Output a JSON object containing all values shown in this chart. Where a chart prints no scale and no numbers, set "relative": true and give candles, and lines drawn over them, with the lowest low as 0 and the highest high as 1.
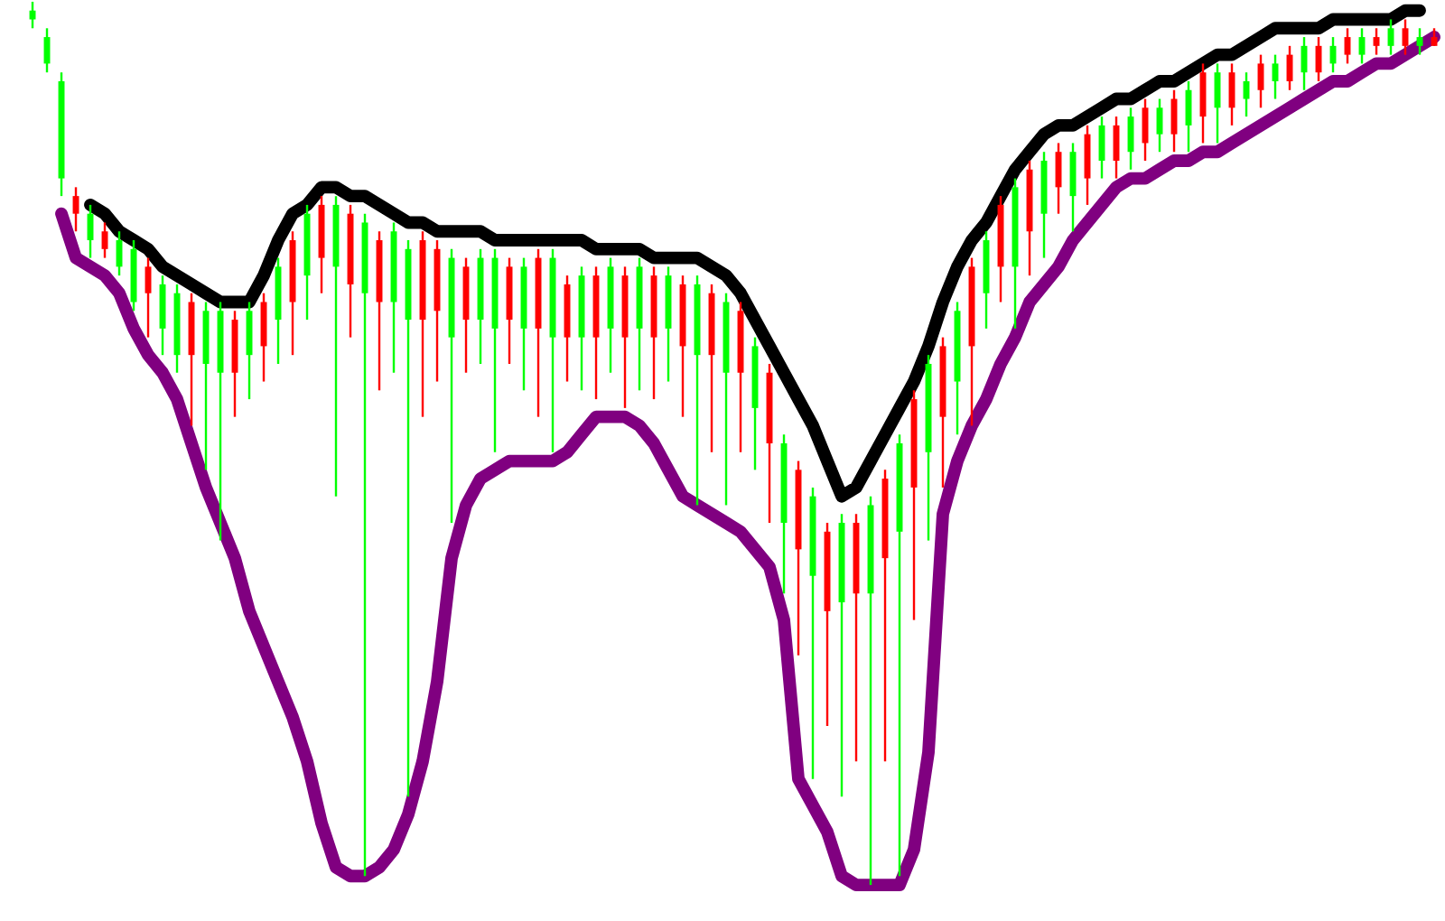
{
  "chart_data": {
    "type": "candlestick",
    "relative": true,
    "categories": [
      null,
      null,
      null,
      null,
      null,
      null,
      null,
      null,
      null,
      null,
      null,
      null,
      null,
      null,
      null,
      null,
      null,
      null,
      null,
      null,
      null,
      null,
      null,
      null,
      null,
      null,
      null,
      null,
      null,
      null,
      null,
      null,
      null,
      null,
      null,
      null,
      null,
      null,
      null,
      null,
      null,
      null,
      null,
      null,
      null,
      null,
      null,
      null,
      null,
      null,
      null,
      null,
      null,
      null,
      null,
      null,
      null,
      null,
      null,
      null,
      null,
      null,
      null,
      null,
      null,
      null,
      null,
      null,
      null,
      null,
      null,
      null,
      null,
      null,
      null,
      null,
      null,
      null,
      null,
      null,
      null,
      null,
      null,
      null,
      null,
      null,
      null,
      null,
      null,
      null,
      null,
      null,
      null,
      null,
      null,
      null,
      null,
      null
    ],
    "ohlc": [
      [
        0.99,
        1.0,
        0.97,
        0.98
      ],
      [
        0.96,
        0.97,
        0.92,
        0.93
      ],
      [
        0.91,
        0.92,
        0.78,
        0.8
      ],
      [
        0.76,
        0.79,
        0.74,
        0.78
      ],
      [
        0.76,
        0.77,
        0.71,
        0.73
      ],
      [
        0.72,
        0.75,
        0.71,
        0.74
      ],
      [
        0.73,
        0.74,
        0.69,
        0.7
      ],
      [
        0.72,
        0.73,
        0.65,
        0.66
      ],
      [
        0.67,
        0.71,
        0.62,
        0.7
      ],
      [
        0.68,
        0.69,
        0.6,
        0.63
      ],
      [
        0.67,
        0.68,
        0.58,
        0.6
      ],
      [
        0.6,
        0.67,
        0.52,
        0.66
      ],
      [
        0.65,
        0.66,
        0.47,
        0.59
      ],
      [
        0.65,
        0.66,
        0.39,
        0.58
      ],
      [
        0.58,
        0.65,
        0.53,
        0.64
      ],
      [
        0.65,
        0.66,
        0.55,
        0.6
      ],
      [
        0.61,
        0.67,
        0.57,
        0.66
      ],
      [
        0.7,
        0.71,
        0.59,
        0.64
      ],
      [
        0.66,
        0.74,
        0.6,
        0.73
      ],
      [
        0.76,
        0.77,
        0.64,
        0.69
      ],
      [
        0.71,
        0.78,
        0.67,
        0.77
      ],
      [
        0.77,
        0.78,
        0.44,
        0.7
      ],
      [
        0.68,
        0.77,
        0.62,
        0.76
      ],
      [
        0.75,
        0.76,
        0.01,
        0.67
      ],
      [
        0.66,
        0.74,
        0.56,
        0.73
      ],
      [
        0.74,
        0.75,
        0.58,
        0.66
      ],
      [
        0.72,
        0.73,
        0.1,
        0.64
      ],
      [
        0.64,
        0.74,
        0.53,
        0.73
      ],
      [
        0.65,
        0.73,
        0.57,
        0.72
      ],
      [
        0.71,
        0.72,
        0.41,
        0.62
      ],
      [
        0.64,
        0.71,
        0.58,
        0.7
      ],
      [
        0.71,
        0.72,
        0.59,
        0.64
      ],
      [
        0.71,
        0.72,
        0.49,
        0.63
      ],
      [
        0.64,
        0.71,
        0.59,
        0.7
      ],
      [
        0.7,
        0.71,
        0.56,
        0.63
      ],
      [
        0.63,
        0.72,
        0.53,
        0.71
      ],
      [
        0.71,
        0.72,
        0.49,
        0.62
      ],
      [
        0.62,
        0.69,
        0.57,
        0.68
      ],
      [
        0.69,
        0.7,
        0.56,
        0.62
      ],
      [
        0.62,
        0.7,
        0.55,
        0.69
      ],
      [
        0.7,
        0.71,
        0.58,
        0.63
      ],
      [
        0.62,
        0.7,
        0.54,
        0.69
      ],
      [
        0.7,
        0.71,
        0.56,
        0.63
      ],
      [
        0.62,
        0.7,
        0.55,
        0.69
      ],
      [
        0.69,
        0.7,
        0.57,
        0.63
      ],
      [
        0.61,
        0.69,
        0.53,
        0.68
      ],
      [
        0.68,
        0.69,
        0.43,
        0.6
      ],
      [
        0.6,
        0.68,
        0.49,
        0.67
      ],
      [
        0.66,
        0.67,
        0.43,
        0.58
      ],
      [
        0.58,
        0.66,
        0.49,
        0.65
      ],
      [
        0.61,
        0.62,
        0.47,
        0.54
      ],
      [
        0.5,
        0.59,
        0.41,
        0.58
      ],
      [
        0.5,
        0.51,
        0.33,
        0.41
      ],
      [
        0.38,
        0.48,
        0.26,
        0.47
      ],
      [
        0.44,
        0.45,
        0.12,
        0.35
      ],
      [
        0.31,
        0.41,
        0.18,
        0.4
      ],
      [
        0.41,
        0.42,
        0.1,
        0.32
      ],
      [
        0.33,
        0.42,
        0.14,
        0.41
      ],
      [
        0.43,
        0.44,
        0.0,
        0.33
      ],
      [
        0.37,
        0.47,
        0.14,
        0.46
      ],
      [
        0.5,
        0.51,
        0.01,
        0.4
      ],
      [
        0.45,
        0.56,
        0.3,
        0.55
      ],
      [
        0.59,
        0.6,
        0.39,
        0.49
      ],
      [
        0.53,
        0.62,
        0.45,
        0.61
      ],
      [
        0.65,
        0.66,
        0.51,
        0.57
      ],
      [
        0.61,
        0.71,
        0.52,
        0.7
      ],
      [
        0.73,
        0.74,
        0.63,
        0.67
      ],
      [
        0.7,
        0.78,
        0.66,
        0.77
      ],
      [
        0.79,
        0.8,
        0.63,
        0.7
      ],
      [
        0.74,
        0.82,
        0.69,
        0.81
      ],
      [
        0.82,
        0.83,
        0.71,
        0.76
      ],
      [
        0.79,
        0.84,
        0.76,
        0.83
      ],
      [
        0.83,
        0.84,
        0.74,
        0.78
      ],
      [
        0.8,
        0.86,
        0.77,
        0.85
      ],
      [
        0.86,
        0.87,
        0.8,
        0.82
      ],
      [
        0.82,
        0.87,
        0.8,
        0.86
      ],
      [
        0.87,
        0.88,
        0.81,
        0.83
      ],
      [
        0.84,
        0.89,
        0.82,
        0.88
      ],
      [
        0.88,
        0.89,
        0.83,
        0.85
      ],
      [
        0.85,
        0.9,
        0.83,
        0.89
      ],
      [
        0.9,
        0.91,
        0.83,
        0.86
      ],
      [
        0.87,
        0.93,
        0.84,
        0.92
      ],
      [
        0.92,
        0.93,
        0.84,
        0.88
      ],
      [
        0.88,
        0.93,
        0.86,
        0.92
      ],
      [
        0.91,
        0.92,
        0.87,
        0.89
      ],
      [
        0.9,
        0.94,
        0.88,
        0.93
      ],
      [
        0.93,
        0.94,
        0.89,
        0.91
      ],
      [
        0.91,
        0.95,
        0.9,
        0.94
      ],
      [
        0.95,
        0.96,
        0.9,
        0.92
      ],
      [
        0.92,
        0.96,
        0.91,
        0.95
      ],
      [
        0.95,
        0.96,
        0.92,
        0.93
      ],
      [
        0.94,
        0.97,
        0.93,
        0.96
      ],
      [
        0.96,
        0.97,
        0.93,
        0.94
      ],
      [
        0.95,
        0.97,
        0.94,
        0.96
      ],
      [
        0.97,
        0.98,
        0.94,
        0.95
      ],
      [
        0.95,
        0.98,
        0.94,
        0.97
      ],
      [
        0.96,
        0.97,
        0.94,
        0.95
      ],
      [
        0.95,
        0.97,
        0.95,
        0.96
      ]
    ],
    "colors": [
      "#00ff00",
      "#00ff00",
      "#00ff00",
      "#ff0000",
      "#00ff00",
      "#ff0000",
      "#00ff00",
      "#00ff00",
      "#ff0000",
      "#00ff00",
      "#00ff00",
      "#ff0000",
      "#00ff00",
      "#00ff00",
      "#ff0000",
      "#00ff00",
      "#ff0000",
      "#00ff00",
      "#ff0000",
      "#00ff00",
      "#ff0000",
      "#00ff00",
      "#ff0000",
      "#00ff00",
      "#ff0000",
      "#00ff00",
      "#00ff00",
      "#ff0000",
      "#ff0000",
      "#00ff00",
      "#ff0000",
      "#00ff00",
      "#00ff00",
      "#ff0000",
      "#00ff00",
      "#ff0000",
      "#00ff00",
      "#ff0000",
      "#00ff00",
      "#ff0000",
      "#00ff00",
      "#ff0000",
      "#00ff00",
      "#ff0000",
      "#00ff00",
      "#ff0000",
      "#00ff00",
      "#ff0000",
      "#00ff00",
      "#ff0000",
      "#00ff00",
      "#ff0000",
      "#00ff00",
      "#ff0000",
      "#00ff00",
      "#ff0000",
      "#00ff00",
      "#ff0000",
      "#00ff00",
      "#ff0000",
      "#00ff00",
      "#ff0000",
      "#00ff00",
      "#ff0000",
      "#00ff00",
      "#ff0000",
      "#00ff00",
      "#ff0000",
      "#00ff00",
      "#ff0000",
      "#00ff00",
      "#ff0000",
      "#00ff00",
      "#ff0000",
      "#00ff00",
      "#ff0000",
      "#00ff00",
      "#ff0000",
      "#00ff00",
      "#ff0000",
      "#00ff00",
      "#ff0000",
      "#00ff00",
      "#ff0000",
      "#00ff00",
      "#ff0000",
      "#00ff00",
      "#ff0000",
      "#00ff00",
      "#ff0000",
      "#00ff00",
      "#ff0000",
      "#00ff00",
      "#ff0000",
      "#00ff00",
      "#ff0000",
      "#00ff00",
      "#ff0000"
    ],
    "series": [
      {
        "type": "line",
        "color": "#000000",
        "values": [
          null,
          null,
          null,
          null,
          0.77,
          0.76,
          0.74,
          0.73,
          0.72,
          0.7,
          0.69,
          0.68,
          0.67,
          0.66,
          0.66,
          0.66,
          0.69,
          0.73,
          0.76,
          0.77,
          0.79,
          0.79,
          0.78,
          0.78,
          0.77,
          0.76,
          0.75,
          0.75,
          0.74,
          0.74,
          0.74,
          0.74,
          0.73,
          0.73,
          0.73,
          0.73,
          0.73,
          0.73,
          0.73,
          0.72,
          0.72,
          0.72,
          0.72,
          0.71,
          0.71,
          0.71,
          0.71,
          0.7,
          0.69,
          0.67,
          0.64,
          0.61,
          0.58,
          0.55,
          0.52,
          0.48,
          0.44,
          0.45,
          0.48,
          0.51,
          0.54,
          0.57,
          0.61,
          0.66,
          0.7,
          0.73,
          0.75,
          0.78,
          0.81,
          0.83,
          0.85,
          0.86,
          0.86,
          0.87,
          0.88,
          0.89,
          0.89,
          0.9,
          0.91,
          0.91,
          0.92,
          0.93,
          0.94,
          0.94,
          0.95,
          0.96,
          0.97,
          0.97,
          0.97,
          0.97,
          0.98,
          0.98,
          0.98,
          0.98,
          0.98,
          0.99,
          0.99,
          null
        ]
      },
      {
        "type": "line",
        "color": "#800080",
        "values": [
          null,
          null,
          0.76,
          0.71,
          0.7,
          0.69,
          0.67,
          0.63,
          0.6,
          0.58,
          0.55,
          0.5,
          0.45,
          0.41,
          0.37,
          0.31,
          0.27,
          0.23,
          0.19,
          0.14,
          0.07,
          0.02,
          0.01,
          0.01,
          0.02,
          0.04,
          0.08,
          0.14,
          0.23,
          0.37,
          0.43,
          0.46,
          0.47,
          0.48,
          0.48,
          0.48,
          0.48,
          0.49,
          0.51,
          0.53,
          0.53,
          0.53,
          0.52,
          0.5,
          0.47,
          0.44,
          0.43,
          0.42,
          0.41,
          0.4,
          0.38,
          0.36,
          0.3,
          0.12,
          0.09,
          0.06,
          0.01,
          0.0,
          0.0,
          0.0,
          0.0,
          0.04,
          0.15,
          0.42,
          0.48,
          0.52,
          0.55,
          0.59,
          0.62,
          0.66,
          0.68,
          0.7,
          0.73,
          0.75,
          0.77,
          0.79,
          0.8,
          0.8,
          0.81,
          0.82,
          0.82,
          0.83,
          0.83,
          0.84,
          0.85,
          0.86,
          0.87,
          0.88,
          0.89,
          0.9,
          0.91,
          0.91,
          0.92,
          0.93,
          0.93,
          0.94,
          0.95,
          0.96
        ]
      }
    ]
  }
}
